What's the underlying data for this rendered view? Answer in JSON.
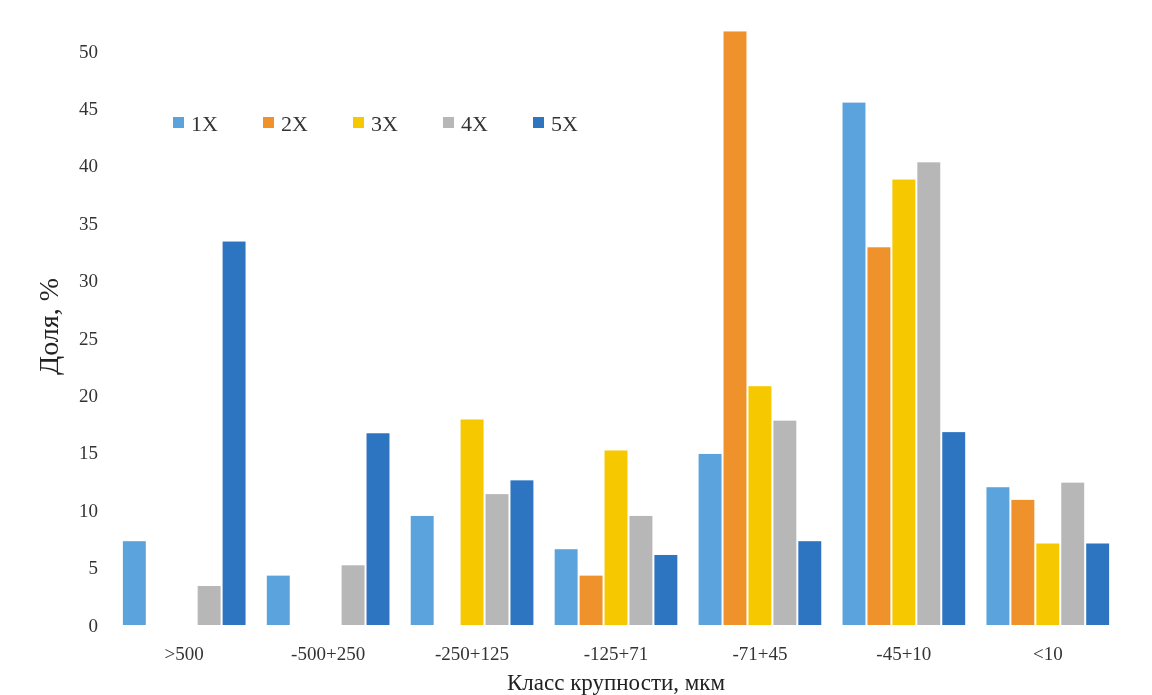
{
  "chart_data": {
    "type": "bar",
    "xlabel": "Класс крупности, мкм",
    "ylabel": "Доля, %",
    "categories": [
      ">500",
      "-500+250",
      "-250+125",
      "-125+71",
      "-71+45",
      "-45+10",
      "<10"
    ],
    "series": [
      {
        "name": "1X",
        "color": "#5ba3dc",
        "values": [
          7.3,
          4.3,
          9.5,
          6.6,
          14.9,
          45.5,
          12.0
        ]
      },
      {
        "name": "2X",
        "color": "#f0922b",
        "values": [
          0,
          0,
          0,
          4.3,
          51.7,
          32.9,
          10.9
        ]
      },
      {
        "name": "3X",
        "color": "#f5c800",
        "values": [
          0,
          0,
          17.9,
          15.2,
          20.8,
          38.8,
          7.1
        ]
      },
      {
        "name": "4X",
        "color": "#b7b7b7",
        "values": [
          3.4,
          5.2,
          11.4,
          9.5,
          17.8,
          40.3,
          12.4
        ]
      },
      {
        "name": "5X",
        "color": "#2e75c1",
        "values": [
          33.4,
          16.7,
          12.6,
          6.1,
          7.3,
          16.8,
          7.1
        ]
      }
    ],
    "ylim": [
      0,
      52
    ],
    "yticks": [
      0,
      5,
      10,
      15,
      20,
      25,
      30,
      35,
      40,
      45,
      50
    ],
    "grid": false,
    "legend": "top left"
  }
}
